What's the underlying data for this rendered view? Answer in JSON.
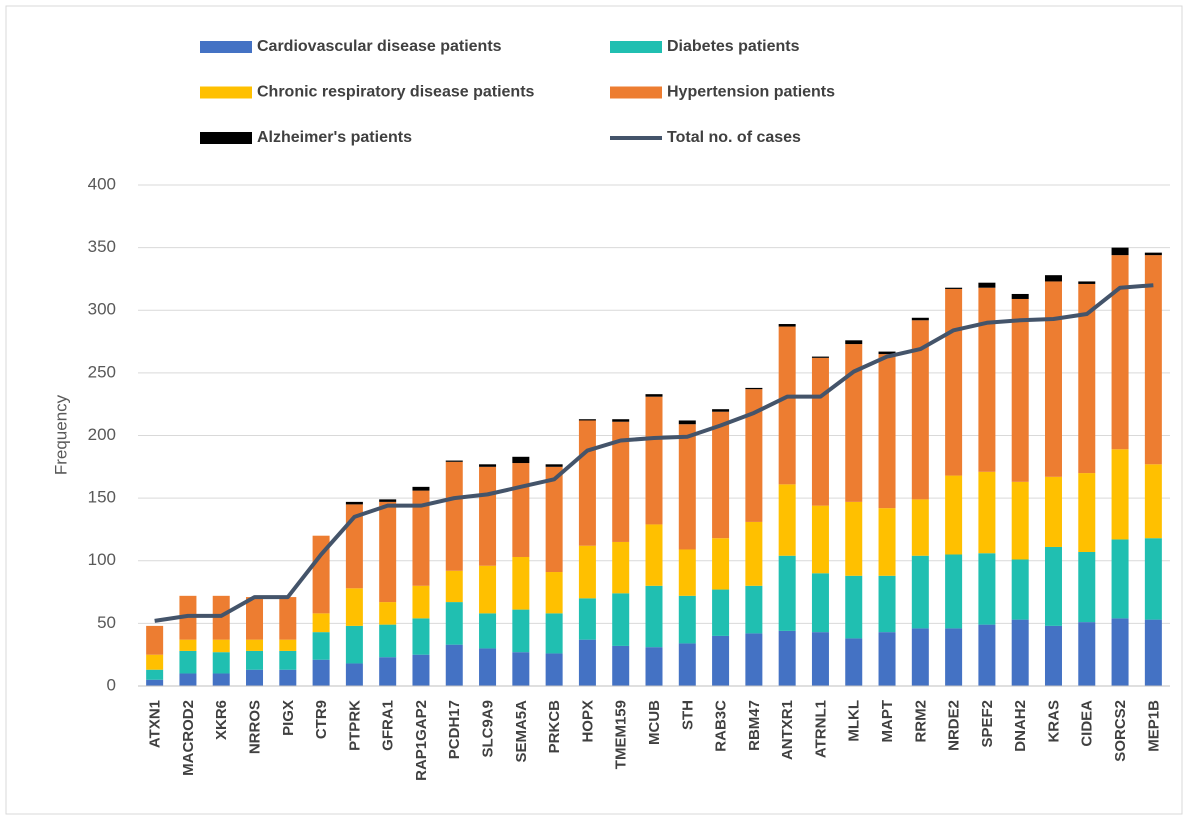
{
  "chart_data": {
    "type": "stacked-bar-line",
    "y_label": "Frequency",
    "categories": [
      "ATXN1",
      "MACROD2",
      "XKR6",
      "NRROS",
      "PIGX",
      "CTR9",
      "PTPRK",
      "GFRA1",
      "RAP1GAP2",
      "PCDH17",
      "SLC9A9",
      "SEMA5A",
      "PRKCB",
      "HOPX",
      "TMEM159",
      "MCUB",
      "STH",
      "RAB3C",
      "RBM47",
      "ANTXR1",
      "ATRNL1",
      "MLKL",
      "MAPT",
      "RRM2",
      "NRDE2",
      "SPEF2",
      "DNAH2",
      "KRAS",
      "CIDEA",
      "SORCS2",
      "MEP1B"
    ],
    "series": [
      {
        "name": "Cardiovascular disease patients",
        "color": "#4472c4",
        "values": [
          5,
          10,
          10,
          13,
          13,
          21,
          18,
          23,
          25,
          33,
          30,
          27,
          26,
          37,
          32,
          31,
          34,
          40,
          42,
          44,
          43,
          38,
          43,
          46,
          46,
          49,
          53,
          48,
          51,
          54,
          53
        ]
      },
      {
        "name": "Diabetes patients",
        "color": "#20bfb1",
        "values": [
          8,
          18,
          17,
          15,
          15,
          22,
          30,
          26,
          29,
          34,
          28,
          34,
          32,
          33,
          42,
          49,
          38,
          37,
          38,
          60,
          47,
          50,
          45,
          58,
          59,
          57,
          48,
          63,
          56,
          63,
          65
        ]
      },
      {
        "name": "Chronic respiratory disease patients",
        "color": "#ffc000",
        "values": [
          12,
          9,
          10,
          9,
          9,
          15,
          30,
          18,
          26,
          25,
          38,
          42,
          33,
          42,
          41,
          49,
          37,
          41,
          51,
          57,
          54,
          59,
          54,
          45,
          63,
          65,
          62,
          56,
          63,
          72,
          59
        ]
      },
      {
        "name": "Hypertension patients",
        "color": "#ed7d31",
        "values": [
          23,
          35,
          35,
          34,
          34,
          62,
          67,
          80,
          76,
          87,
          79,
          75,
          84,
          100,
          96,
          102,
          100,
          101,
          106,
          126,
          118,
          126,
          123,
          143,
          149,
          147,
          146,
          156,
          151,
          155,
          167
        ]
      },
      {
        "name": "Alzheimer's patients",
        "color": "#000000",
        "values": [
          0,
          0,
          0,
          0,
          0,
          0,
          2,
          2,
          3,
          1,
          2,
          5,
          2,
          1,
          2,
          2,
          3,
          2,
          1,
          2,
          1,
          3,
          2,
          2,
          1,
          4,
          4,
          5,
          2,
          6,
          2
        ]
      }
    ],
    "line": {
      "name": "Total no. of cases",
      "color": "#44546a",
      "values": [
        52,
        56,
        56,
        71,
        71,
        105,
        135,
        144,
        144,
        150,
        153,
        159,
        165,
        188,
        196,
        198,
        199,
        208,
        218,
        231,
        231,
        251,
        263,
        269,
        284,
        290,
        292,
        293,
        297,
        318,
        320
      ]
    },
    "ylim": [
      0,
      400
    ],
    "yticks": [
      0,
      50,
      100,
      150,
      200,
      250,
      300,
      350,
      400
    ],
    "grid": true
  }
}
